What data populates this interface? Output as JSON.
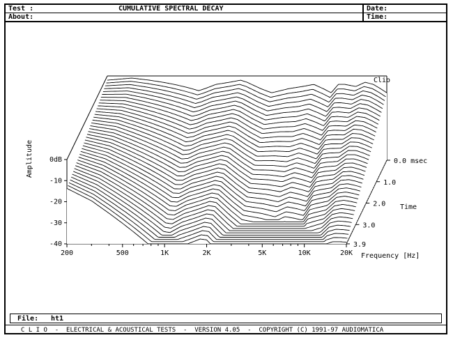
{
  "header": {
    "test_label": "Test :",
    "title": "CUMULATIVE SPECTRAL DECAY",
    "about_label": "About:",
    "date_label": "Date:",
    "time_label": "Time:"
  },
  "brand_tag": "Clio",
  "file": {
    "label": "File:",
    "name": "ht1"
  },
  "footer_text": "C L I O  -  ELECTRICAL & ACOUSTICAL TESTS  -  VERSION 4.05  -  COPYRIGHT (C) 1991-97 AUDIOMATICA",
  "chart_data": {
    "type": "waterfall",
    "ylabel": "Amplitude",
    "xlabel": "Frequency [Hz]",
    "zlabel": "Time",
    "y_ticks": [
      "0dB",
      "-10",
      "-20",
      "-30",
      "-40"
    ],
    "ylim": [
      -40,
      0
    ],
    "x_ticks": [
      {
        "label": "200",
        "value": 200
      },
      {
        "label": "500",
        "value": 500
      },
      {
        "label": "1K",
        "value": 1000
      },
      {
        "label": "2K",
        "value": 2000
      },
      {
        "label": "5K",
        "value": 5000
      },
      {
        "label": "10K",
        "value": 10000
      },
      {
        "label": "20K",
        "value": 20000
      }
    ],
    "xlim": [
      200,
      20000
    ],
    "x_scale": "log",
    "z_ticks": [
      {
        "label": "0.0 msec",
        "value": 0.0
      },
      {
        "label": "1.0",
        "value": 1.0
      },
      {
        "label": "2.0",
        "value": 2.0
      },
      {
        "label": "3.0",
        "value": 3.0
      },
      {
        "label": "3.9",
        "value": 3.9
      }
    ],
    "zlim": [
      0,
      3.9
    ],
    "slice_count": 39,
    "initial_response": {
      "frequency_hz": [
        200,
        300,
        400,
        500,
        600,
        700,
        800,
        900,
        1000,
        1200,
        1500,
        1800,
        2000,
        2500,
        3000,
        4000,
        5000,
        6000,
        7000,
        8000,
        9000,
        10000,
        12000,
        14000,
        16000,
        18000,
        20000
      ],
      "level_db": [
        -2,
        -1,
        -2,
        -3,
        -4,
        -5,
        -6,
        -7,
        -6,
        -4,
        -3,
        -2,
        -3,
        -6,
        -8,
        -6,
        -5,
        -4,
        -6,
        -8,
        -4,
        -4,
        -5,
        -3,
        -4,
        -6,
        -8
      ]
    },
    "decay_rate_db_per_ms": [
      {
        "frequency_hz": 200,
        "rate": 3
      },
      {
        "frequency_hz": 1000,
        "rate": 10
      },
      {
        "frequency_hz": 2000,
        "rate": 9
      },
      {
        "frequency_hz": 5000,
        "rate": 13
      },
      {
        "frequency_hz": 10000,
        "rate": 11
      },
      {
        "frequency_hz": 20000,
        "rate": 8
      }
    ],
    "grid": false
  }
}
